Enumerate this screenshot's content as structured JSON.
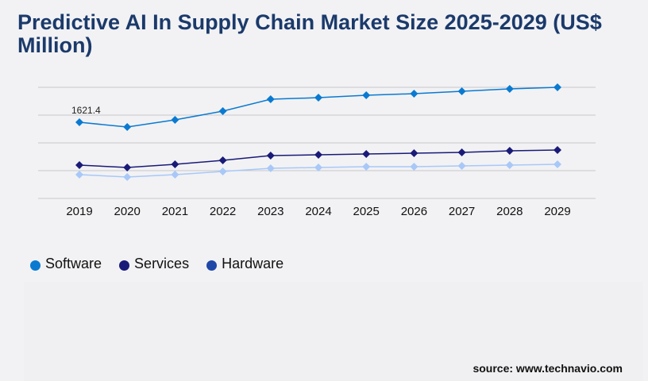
{
  "title": "Predictive AI In Supply Chain Market Size 2025-2029 (US$ Million)",
  "source": "source: www.technavio.com",
  "chart_data": {
    "type": "line",
    "title": "Predictive AI In Supply Chain Market Size 2025-2029 (US$ Million)",
    "categories": [
      "2019",
      "2020",
      "2021",
      "2022",
      "2023",
      "2024",
      "2025",
      "2026",
      "2027",
      "2028",
      "2029"
    ],
    "ylim": [
      0,
      2365
    ],
    "grid": true,
    "legend": "bottom-left",
    "annotation": {
      "series": "Software",
      "category": "2019",
      "text": "1621.4"
    },
    "series": [
      {
        "name": "Software",
        "color": "#0a7ad1",
        "legend_color": "#0a7ad1",
        "values": [
          1621.4,
          1520,
          1672,
          1858,
          2111,
          2145,
          2196,
          2230,
          2280,
          2331,
          2365
        ]
      },
      {
        "name": "Services",
        "color": "#1a1a78",
        "legend_color": "#1a1a78",
        "values": [
          709,
          659,
          726,
          811,
          912,
          929,
          946,
          963,
          980,
          1013,
          1030
        ]
      },
      {
        "name": "Hardware",
        "color": "#a8c8f8",
        "legend_color": "#1f47a8",
        "values": [
          507,
          456,
          507,
          574,
          642,
          659,
          676,
          676,
          692,
          709,
          726
        ]
      }
    ]
  }
}
